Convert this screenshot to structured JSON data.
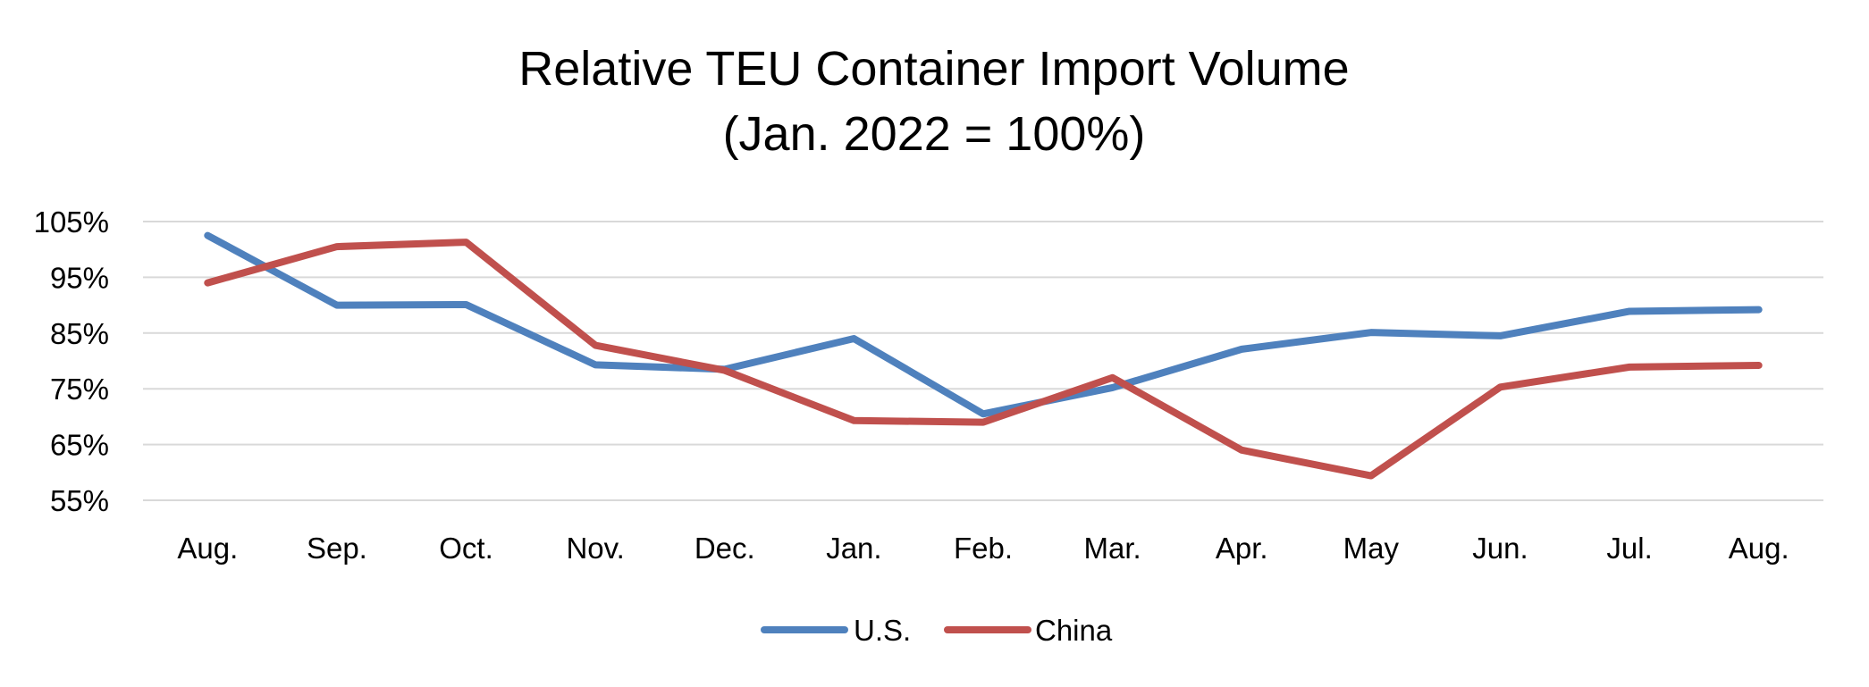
{
  "chart_data": {
    "type": "line",
    "title": [
      "Relative TEU Container Import  Volume",
      "(Jan. 2022 = 100%)"
    ],
    "xlabel": "",
    "ylabel": "",
    "categories": [
      "Aug.",
      "Sep.",
      "Oct.",
      "Nov.",
      "Dec.",
      "Jan.",
      "Feb.",
      "Mar.",
      "Apr.",
      "May",
      "Jun.",
      "Jul.",
      "Aug."
    ],
    "y_ticks": [
      55,
      65,
      75,
      85,
      95,
      105
    ],
    "y_tick_labels": [
      "55%",
      "65%",
      "75%",
      "85%",
      "95%",
      "105%"
    ],
    "ylim": [
      55,
      105
    ],
    "grid": true,
    "legend_position": "bottom",
    "series": [
      {
        "name": "U.S.",
        "color": "#4f81bd",
        "values": [
          102.5,
          90,
          90.1,
          79.3,
          78.5,
          84,
          70.5,
          75.2,
          82.1,
          85.1,
          84.5,
          88.9,
          89.2
        ]
      },
      {
        "name": "China",
        "color": "#c0504d",
        "values": [
          94,
          100.5,
          101.3,
          82.8,
          78.3,
          69.3,
          69,
          77,
          64,
          59.4,
          75.3,
          78.9,
          79.2
        ]
      }
    ]
  }
}
